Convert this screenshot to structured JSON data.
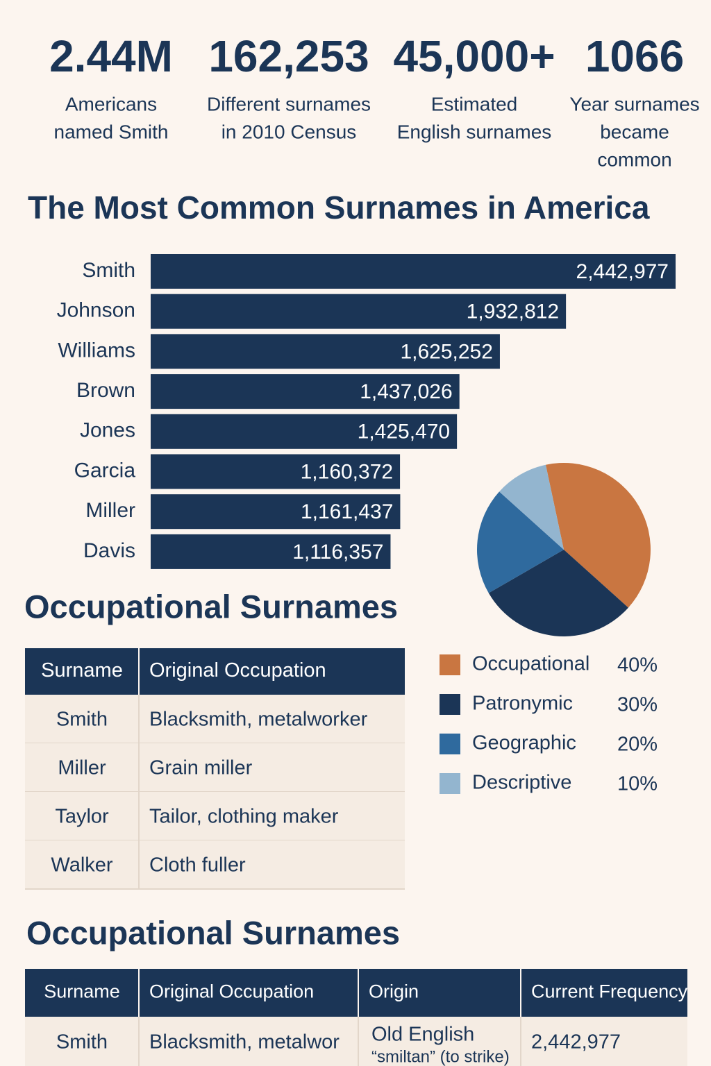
{
  "stats": [
    {
      "value": "2.44M",
      "label": [
        "Americans",
        "named Smith"
      ]
    },
    {
      "value": "162,253",
      "label": [
        "Different surnames",
        "in 2010 Census"
      ]
    },
    {
      "value": "45,000+",
      "label": [
        "Estimated",
        "English surnames"
      ]
    },
    {
      "value": "1066",
      "label": [
        "Year surnames",
        "became",
        "common"
      ]
    }
  ],
  "chart_data": [
    {
      "type": "bar",
      "title": "The Most Common Surnames in America",
      "categories": [
        "Smith",
        "Johnson",
        "Williams",
        "Brown",
        "Jones",
        "Garcia",
        "Miller",
        "Davis"
      ],
      "values": [
        2442977,
        1932812,
        1625252,
        1437026,
        1425470,
        1160372,
        1161437,
        1116357
      ],
      "value_labels": [
        "2,442,977",
        "1,932,812",
        "1,625,252",
        "1,437,026",
        "1,425,470",
        "1,160,372",
        "1,161,437",
        "1,116,357"
      ],
      "color": "#1b3556"
    },
    {
      "type": "pie",
      "categories": [
        "Occupational",
        "Patronymic",
        "Geographic",
        "Descriptive"
      ],
      "values": [
        40,
        30,
        20,
        10
      ],
      "value_labels": [
        "40%",
        "30%",
        "20%",
        "10%"
      ],
      "colors": [
        "#c97641",
        "#1b3556",
        "#2f6a9e",
        "#93b5cf"
      ]
    }
  ],
  "tables": [
    {
      "title": "Occupational Surnames",
      "headers": [
        "Surname",
        "Original Occupation"
      ],
      "rows": [
        [
          "Smith",
          "Blacksmith, metalworker"
        ],
        [
          "Miller",
          "Grain miller"
        ],
        [
          "Taylor",
          "Tailor, clothing maker"
        ],
        [
          "Walker",
          "Cloth fuller"
        ]
      ]
    },
    {
      "title": "Occupational Surnames",
      "headers": [
        "Surname",
        "Original Occupation",
        "Origin",
        "Current Frequency"
      ],
      "rows": [
        [
          "Smith",
          "Blacksmith, metalwor",
          [
            "Old English",
            "“smiltan” (to strike)"
          ],
          "2,442,977"
        ]
      ]
    }
  ]
}
